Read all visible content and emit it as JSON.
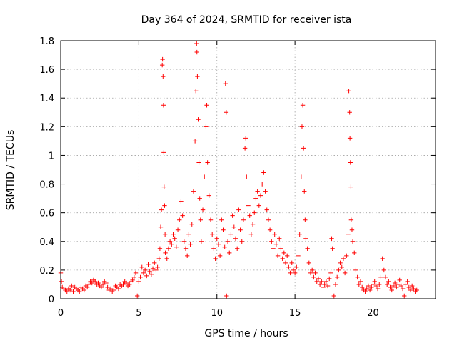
{
  "chart_data": {
    "type": "scatter",
    "title": "Day 364 of 2024, SRMTID for receiver ista",
    "xlabel": "GPS time / hours",
    "ylabel": "SRMTID / TECUs",
    "xlim": [
      0,
      24
    ],
    "ylim": [
      0,
      1.8
    ],
    "x_ticks": [
      0,
      5,
      10,
      15,
      20
    ],
    "x_tick_labels": [
      "0",
      "5",
      "10",
      "15",
      "20"
    ],
    "y_ticks": [
      0,
      0.2,
      0.4,
      0.6,
      0.8,
      1.0,
      1.2,
      1.4,
      1.6,
      1.8
    ],
    "y_tick_labels": [
      "0",
      "0.2",
      "0.4",
      "0.6",
      "0.8",
      "1",
      "1.2",
      "1.4",
      "1.6",
      "1.8"
    ],
    "grid": true,
    "marker": "+",
    "color": "#ff0000",
    "series": [
      {
        "name": "SRMTID",
        "points": [
          [
            0.0,
            0.18
          ],
          [
            0.05,
            0.12
          ],
          [
            0.1,
            0.08
          ],
          [
            0.2,
            0.07
          ],
          [
            0.3,
            0.06
          ],
          [
            0.4,
            0.05
          ],
          [
            0.5,
            0.07
          ],
          [
            0.6,
            0.06
          ],
          [
            0.7,
            0.09
          ],
          [
            0.8,
            0.05
          ],
          [
            0.9,
            0.08
          ],
          [
            1.0,
            0.07
          ],
          [
            1.1,
            0.06
          ],
          [
            1.2,
            0.05
          ],
          [
            1.3,
            0.08
          ],
          [
            1.4,
            0.07
          ],
          [
            1.5,
            0.06
          ],
          [
            1.6,
            0.09
          ],
          [
            1.7,
            0.08
          ],
          [
            1.8,
            0.1
          ],
          [
            1.9,
            0.12
          ],
          [
            2.0,
            0.11
          ],
          [
            2.1,
            0.13
          ],
          [
            2.2,
            0.12
          ],
          [
            2.3,
            0.1
          ],
          [
            2.4,
            0.11
          ],
          [
            2.5,
            0.09
          ],
          [
            2.6,
            0.08
          ],
          [
            2.7,
            0.1
          ],
          [
            2.8,
            0.12
          ],
          [
            2.9,
            0.11
          ],
          [
            3.0,
            0.08
          ],
          [
            3.1,
            0.06
          ],
          [
            3.2,
            0.07
          ],
          [
            3.3,
            0.05
          ],
          [
            3.4,
            0.06
          ],
          [
            3.5,
            0.09
          ],
          [
            3.6,
            0.08
          ],
          [
            3.7,
            0.07
          ],
          [
            3.8,
            0.1
          ],
          [
            3.9,
            0.09
          ],
          [
            4.0,
            0.1
          ],
          [
            4.1,
            0.12
          ],
          [
            4.2,
            0.11
          ],
          [
            4.3,
            0.09
          ],
          [
            4.4,
            0.1
          ],
          [
            4.5,
            0.12
          ],
          [
            4.6,
            0.13
          ],
          [
            4.7,
            0.15
          ],
          [
            4.8,
            0.18
          ],
          [
            4.9,
            0.02
          ],
          [
            5.0,
            0.12
          ],
          [
            5.1,
            0.15
          ],
          [
            5.2,
            0.22
          ],
          [
            5.3,
            0.18
          ],
          [
            5.4,
            0.2
          ],
          [
            5.5,
            0.16
          ],
          [
            5.6,
            0.24
          ],
          [
            5.7,
            0.19
          ],
          [
            5.8,
            0.17
          ],
          [
            5.9,
            0.21
          ],
          [
            6.0,
            0.25
          ],
          [
            6.1,
            0.2
          ],
          [
            6.2,
            0.22
          ],
          [
            6.3,
            0.28
          ],
          [
            6.35,
            0.35
          ],
          [
            6.4,
            0.5
          ],
          [
            6.45,
            0.62
          ],
          [
            6.5,
            1.63
          ],
          [
            6.52,
            1.67
          ],
          [
            6.55,
            1.55
          ],
          [
            6.58,
            1.35
          ],
          [
            6.6,
            1.02
          ],
          [
            6.62,
            0.78
          ],
          [
            6.65,
            0.65
          ],
          [
            6.68,
            0.45
          ],
          [
            6.7,
            0.32
          ],
          [
            6.8,
            0.28
          ],
          [
            6.9,
            0.35
          ],
          [
            7.0,
            0.4
          ],
          [
            7.1,
            0.38
          ],
          [
            7.2,
            0.45
          ],
          [
            7.3,
            0.42
          ],
          [
            7.4,
            0.36
          ],
          [
            7.5,
            0.48
          ],
          [
            7.6,
            0.55
          ],
          [
            7.7,
            0.68
          ],
          [
            7.8,
            0.58
          ],
          [
            7.9,
            0.4
          ],
          [
            8.0,
            0.35
          ],
          [
            8.1,
            0.3
          ],
          [
            8.2,
            0.45
          ],
          [
            8.3,
            0.38
          ],
          [
            8.4,
            0.52
          ],
          [
            8.5,
            0.75
          ],
          [
            8.6,
            1.1
          ],
          [
            8.65,
            1.45
          ],
          [
            8.7,
            1.78
          ],
          [
            8.72,
            1.72
          ],
          [
            8.75,
            1.55
          ],
          [
            8.8,
            1.25
          ],
          [
            8.85,
            0.95
          ],
          [
            8.9,
            0.7
          ],
          [
            8.95,
            0.55
          ],
          [
            9.0,
            0.4
          ],
          [
            9.1,
            0.62
          ],
          [
            9.2,
            0.85
          ],
          [
            9.3,
            1.2
          ],
          [
            9.35,
            1.35
          ],
          [
            9.4,
            0.95
          ],
          [
            9.5,
            0.72
          ],
          [
            9.6,
            0.55
          ],
          [
            9.7,
            0.45
          ],
          [
            9.8,
            0.35
          ],
          [
            9.9,
            0.28
          ],
          [
            10.0,
            0.42
          ],
          [
            10.1,
            0.38
          ],
          [
            10.2,
            0.3
          ],
          [
            10.3,
            0.55
          ],
          [
            10.4,
            0.48
          ],
          [
            10.5,
            0.36
          ],
          [
            10.55,
            1.5
          ],
          [
            10.6,
            1.3
          ],
          [
            10.62,
            0.02
          ],
          [
            10.7,
            0.4
          ],
          [
            10.8,
            0.32
          ],
          [
            10.9,
            0.45
          ],
          [
            11.0,
            0.58
          ],
          [
            11.1,
            0.5
          ],
          [
            11.2,
            0.42
          ],
          [
            11.3,
            0.35
          ],
          [
            11.4,
            0.62
          ],
          [
            11.5,
            0.48
          ],
          [
            11.6,
            0.4
          ],
          [
            11.7,
            0.55
          ],
          [
            11.8,
            1.05
          ],
          [
            11.85,
            1.12
          ],
          [
            11.9,
            0.85
          ],
          [
            12.0,
            0.65
          ],
          [
            12.1,
            0.58
          ],
          [
            12.2,
            0.45
          ],
          [
            12.3,
            0.52
          ],
          [
            12.4,
            0.6
          ],
          [
            12.5,
            0.7
          ],
          [
            12.6,
            0.75
          ],
          [
            12.7,
            0.65
          ],
          [
            12.8,
            0.72
          ],
          [
            12.9,
            0.8
          ],
          [
            13.0,
            0.88
          ],
          [
            13.1,
            0.75
          ],
          [
            13.2,
            0.62
          ],
          [
            13.3,
            0.55
          ],
          [
            13.4,
            0.48
          ],
          [
            13.5,
            0.4
          ],
          [
            13.6,
            0.35
          ],
          [
            13.7,
            0.45
          ],
          [
            13.8,
            0.38
          ],
          [
            13.9,
            0.3
          ],
          [
            14.0,
            0.42
          ],
          [
            14.1,
            0.35
          ],
          [
            14.2,
            0.28
          ],
          [
            14.3,
            0.32
          ],
          [
            14.4,
            0.25
          ],
          [
            14.5,
            0.3
          ],
          [
            14.6,
            0.22
          ],
          [
            14.7,
            0.18
          ],
          [
            14.8,
            0.25
          ],
          [
            14.9,
            0.2
          ],
          [
            15.0,
            0.18
          ],
          [
            15.1,
            0.22
          ],
          [
            15.2,
            0.3
          ],
          [
            15.3,
            0.45
          ],
          [
            15.4,
            0.85
          ],
          [
            15.45,
            1.2
          ],
          [
            15.5,
            1.35
          ],
          [
            15.55,
            1.05
          ],
          [
            15.6,
            0.75
          ],
          [
            15.65,
            0.55
          ],
          [
            15.7,
            0.42
          ],
          [
            15.8,
            0.35
          ],
          [
            15.9,
            0.25
          ],
          [
            16.0,
            0.18
          ],
          [
            16.1,
            0.2
          ],
          [
            16.2,
            0.15
          ],
          [
            16.3,
            0.18
          ],
          [
            16.4,
            0.12
          ],
          [
            16.5,
            0.14
          ],
          [
            16.6,
            0.1
          ],
          [
            16.7,
            0.12
          ],
          [
            16.8,
            0.08
          ],
          [
            16.9,
            0.1
          ],
          [
            17.0,
            0.12
          ],
          [
            17.1,
            0.09
          ],
          [
            17.2,
            0.14
          ],
          [
            17.3,
            0.18
          ],
          [
            17.35,
            0.42
          ],
          [
            17.4,
            0.35
          ],
          [
            17.5,
            0.02
          ],
          [
            17.6,
            0.1
          ],
          [
            17.7,
            0.15
          ],
          [
            17.8,
            0.2
          ],
          [
            17.9,
            0.25
          ],
          [
            18.0,
            0.22
          ],
          [
            18.1,
            0.28
          ],
          [
            18.2,
            0.18
          ],
          [
            18.3,
            0.3
          ],
          [
            18.4,
            0.45
          ],
          [
            18.45,
            1.45
          ],
          [
            18.5,
            1.3
          ],
          [
            18.52,
            1.12
          ],
          [
            18.55,
            0.95
          ],
          [
            18.58,
            0.78
          ],
          [
            18.6,
            0.55
          ],
          [
            18.65,
            0.48
          ],
          [
            18.7,
            0.4
          ],
          [
            18.8,
            0.32
          ],
          [
            18.9,
            0.2
          ],
          [
            19.0,
            0.15
          ],
          [
            19.1,
            0.1
          ],
          [
            19.2,
            0.12
          ],
          [
            19.3,
            0.08
          ],
          [
            19.4,
            0.06
          ],
          [
            19.5,
            0.05
          ],
          [
            19.6,
            0.07
          ],
          [
            19.7,
            0.09
          ],
          [
            19.8,
            0.06
          ],
          [
            19.9,
            0.08
          ],
          [
            20.0,
            0.1
          ],
          [
            20.1,
            0.12
          ],
          [
            20.2,
            0.09
          ],
          [
            20.3,
            0.07
          ],
          [
            20.4,
            0.1
          ],
          [
            20.5,
            0.15
          ],
          [
            20.6,
            0.28
          ],
          [
            20.7,
            0.2
          ],
          [
            20.8,
            0.15
          ],
          [
            20.9,
            0.1
          ],
          [
            21.0,
            0.12
          ],
          [
            21.1,
            0.08
          ],
          [
            21.2,
            0.06
          ],
          [
            21.3,
            0.09
          ],
          [
            21.4,
            0.11
          ],
          [
            21.5,
            0.08
          ],
          [
            21.6,
            0.1
          ],
          [
            21.7,
            0.13
          ],
          [
            21.8,
            0.09
          ],
          [
            21.9,
            0.07
          ],
          [
            22.0,
            0.02
          ],
          [
            22.1,
            0.1
          ],
          [
            22.2,
            0.12
          ],
          [
            22.3,
            0.08
          ],
          [
            22.4,
            0.06
          ],
          [
            22.5,
            0.09
          ],
          [
            22.6,
            0.07
          ],
          [
            22.7,
            0.05
          ],
          [
            22.8,
            0.06
          ]
        ]
      }
    ]
  }
}
